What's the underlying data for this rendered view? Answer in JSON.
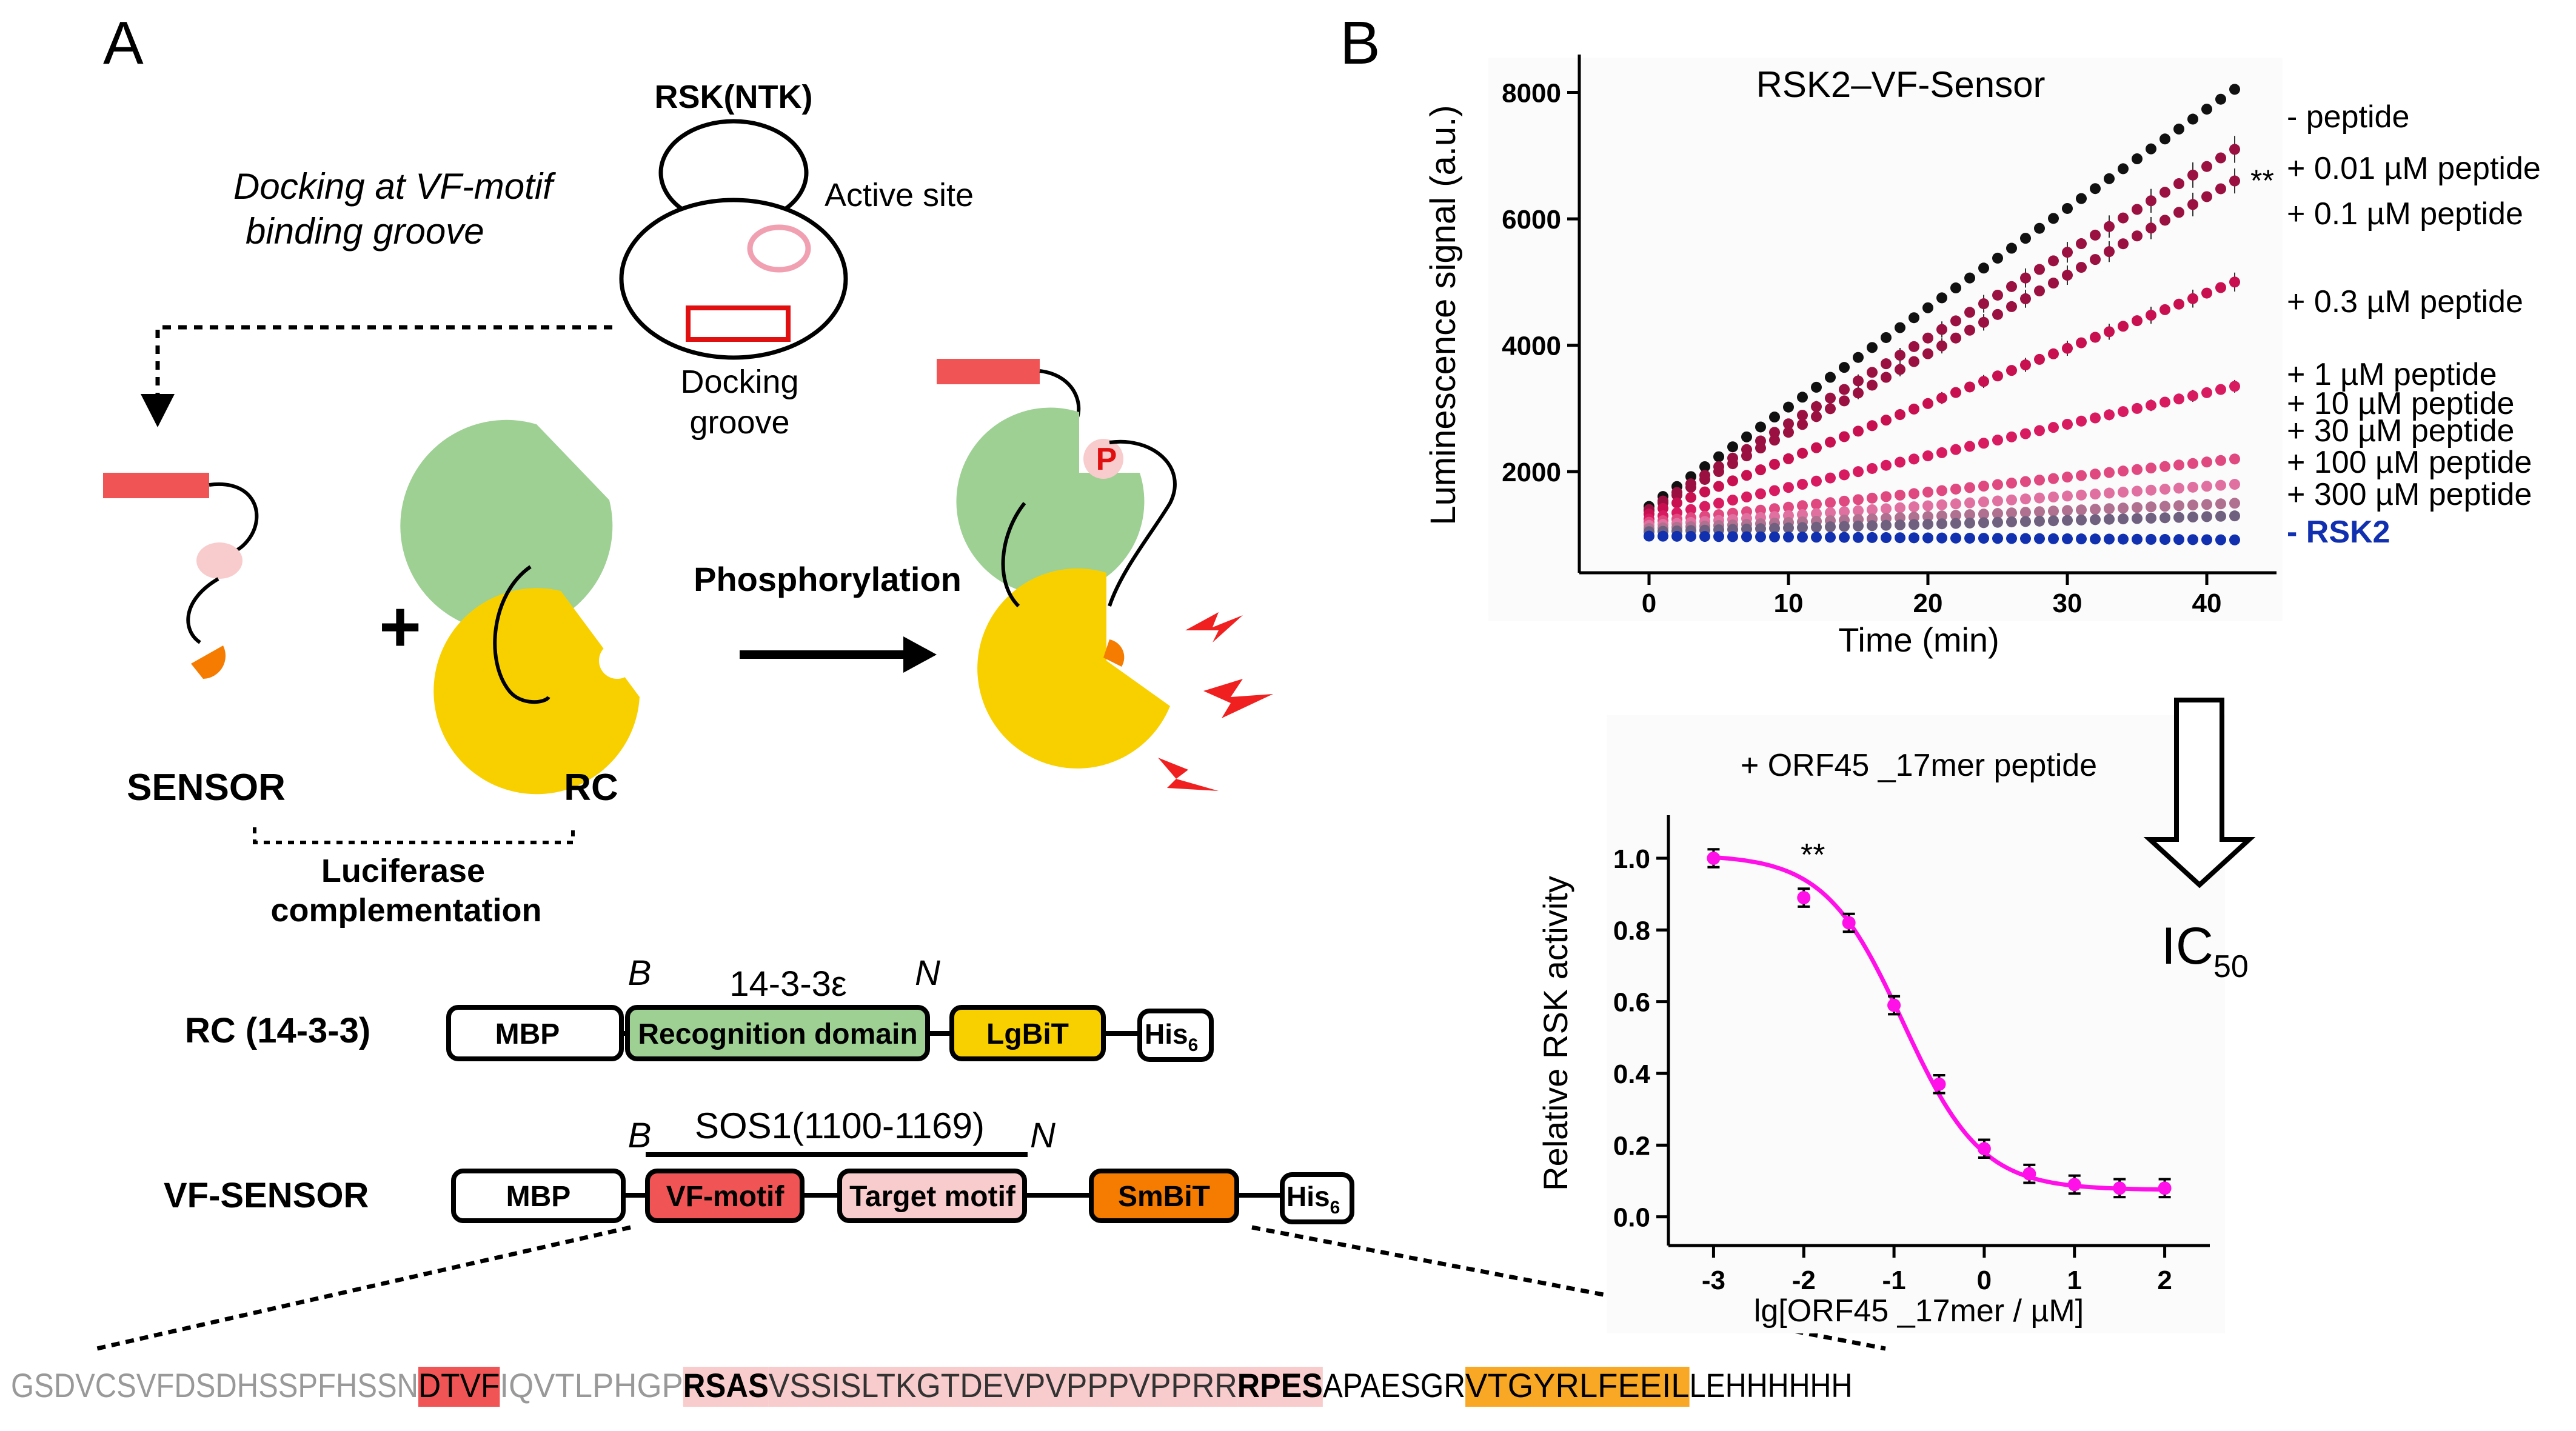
{
  "panel_a": {
    "label": "A",
    "rsk_title": "RSK(NTK)",
    "active_site": "Active site",
    "docking_groove_1": "Docking",
    "docking_groove_2": "groove",
    "docking_text_1": "Docking at VF-motif",
    "docking_text_2": "binding groove",
    "plus": "+",
    "phosphorylation": "Phosphorylation",
    "p_label": "P",
    "sensor": "SENSOR",
    "rc": "RC",
    "complementation_1": "Luciferase",
    "complementation_2": "complementation",
    "rc_construct": {
      "name": "RC (14-3-3)",
      "b": "B",
      "n": "N",
      "span_label": "14-3-3ε",
      "mbp": "MBP",
      "recognition": "Recognition domain",
      "lgbit": "LgBiT",
      "his": "His",
      "his_sub": "6"
    },
    "vf_construct": {
      "name": "VF-SENSOR",
      "b": "B",
      "n": "N",
      "span_label": "SOS1(1100-1169)",
      "mbp": "MBP",
      "vf": "VF-motif",
      "target": "Target motif",
      "smbit": "SmBiT",
      "his": "His",
      "his_sub": "6"
    },
    "sequence": [
      {
        "t": "GSDVCSVFDSDHSSPFHSSN",
        "style": "grey"
      },
      {
        "t": "DTVF",
        "style": "red"
      },
      {
        "t": "IQVTLPHGP",
        "style": "grey"
      },
      {
        "t": "RSAS",
        "style": "pinkbold"
      },
      {
        "t": "VSSISLTKGTDEVPVPPPVPPRR",
        "style": "pink"
      },
      {
        "t": "RPES",
        "style": "pinkbold"
      },
      {
        "t": "APAESGR",
        "style": "plain"
      },
      {
        "t": "VTGYRLFEEIL",
        "style": "orange"
      },
      {
        "t": "LEHHHHHH",
        "style": "plain"
      }
    ]
  },
  "panel_b": {
    "label": "B",
    "arrow_label": "IC",
    "arrow_label_sub": "50"
  },
  "colors": {
    "red": "#f05454",
    "pink": "#f8cccc",
    "green": "#9ed094",
    "yellow": "#f8d000",
    "orange": "#f57c00",
    "magenta": "#ff10e8",
    "blue": "#1030b0"
  },
  "chart_data": [
    {
      "type": "scatter",
      "title": "RSK2–VF-Sensor",
      "xlabel": "Time (min)",
      "ylabel": "Luminescence signal (a.u.)",
      "xlim": [
        -5,
        45
      ],
      "ylim": [
        400,
        8600
      ],
      "x_ticks": [
        0,
        10,
        20,
        30,
        40
      ],
      "y_ticks": [
        2000,
        4000,
        6000,
        8000
      ],
      "grid": false,
      "legend": "right",
      "significance": "**",
      "significance_series": "+ 0.01 µM peptide",
      "series": [
        {
          "name": "-  peptide",
          "color": "#111111",
          "start": 1450,
          "end": 8050
        },
        {
          "name": "+ 0.01 µM peptide",
          "color": "#9a1040",
          "start": 1400,
          "end": 7100
        },
        {
          "name": "+ 0.1 µM peptide",
          "color": "#9a1040",
          "start": 1380,
          "end": 6600
        },
        {
          "name": "+ 0.3 µM peptide",
          "color": "#c81050",
          "start": 1330,
          "end": 5000
        },
        {
          "name": "+ 1 µM peptide",
          "color": "#d81b60",
          "start": 1250,
          "end": 3350
        },
        {
          "name": "+ 10 µM peptide",
          "color": "#e04880",
          "start": 1200,
          "end": 2200
        },
        {
          "name": "+ 30 µM peptide",
          "color": "#e070a0",
          "start": 1150,
          "end": 1800
        },
        {
          "name": "+ 100 µM peptide",
          "color": "#b07090",
          "start": 1100,
          "end": 1500
        },
        {
          "name": "+ 300 µM peptide",
          "color": "#706080",
          "start": 1050,
          "end": 1300
        },
        {
          "name": "- RSK2",
          "color": "#1030b0",
          "start": 980,
          "end": 920
        }
      ]
    },
    {
      "type": "scatter",
      "title": "+ ORF45 _17mer peptide",
      "xlabel": "lg[ORF45 _17mer / µM]",
      "ylabel": "Relative RSK activity",
      "xlim": [
        -3.5,
        2.5
      ],
      "ylim": [
        -0.08,
        1.12
      ],
      "x_ticks": [
        -3,
        -2,
        -1,
        0,
        1,
        2
      ],
      "y_ticks": [
        0.0,
        0.2,
        0.4,
        0.6,
        0.8,
        1.0
      ],
      "significance": "**",
      "significance_x": -2,
      "points": [
        {
          "x": -3,
          "y": 1.0
        },
        {
          "x": -2,
          "y": 0.89
        },
        {
          "x": -1.5,
          "y": 0.82
        },
        {
          "x": -1,
          "y": 0.59
        },
        {
          "x": -0.5,
          "y": 0.37
        },
        {
          "x": 0,
          "y": 0.19
        },
        {
          "x": 0.5,
          "y": 0.12
        },
        {
          "x": 1,
          "y": 0.09
        },
        {
          "x": 1.5,
          "y": 0.08
        },
        {
          "x": 2,
          "y": 0.08
        }
      ],
      "fit": {
        "bottom": 0.075,
        "top": 1.01,
        "log_ic50": -0.9,
        "hill": 1.0
      },
      "fit_color": "#ff10e8"
    }
  ]
}
